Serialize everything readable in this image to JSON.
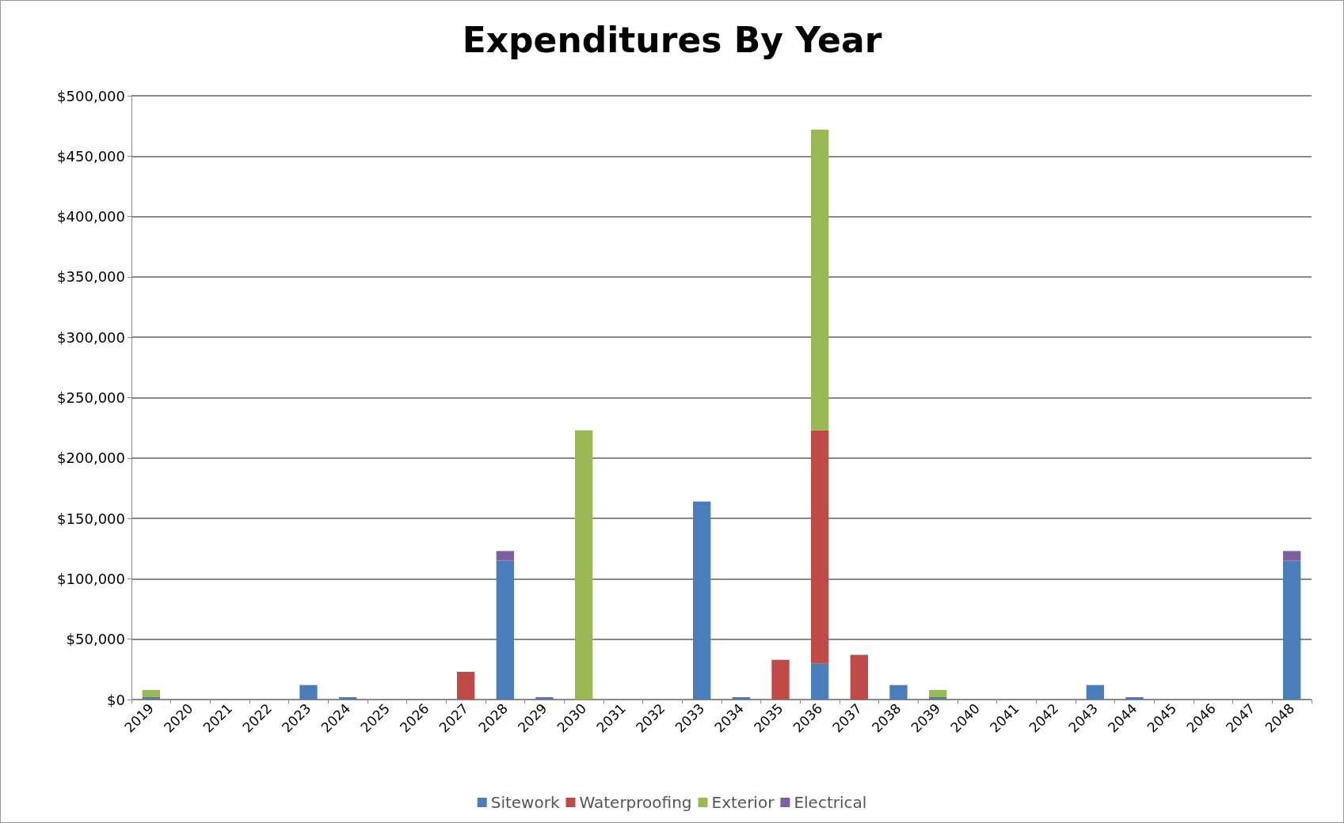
{
  "chart_data": {
    "type": "bar",
    "title": "Expenditures By Year",
    "stacked": true,
    "grid": "y",
    "legend": "bottom",
    "categories": [
      "2019",
      "2020",
      "2021",
      "2022",
      "2023",
      "2024",
      "2025",
      "2026",
      "2027",
      "2028",
      "2029",
      "2030",
      "2031",
      "2032",
      "2033",
      "2034",
      "2035",
      "2036",
      "2037",
      "2038",
      "2039",
      "2040",
      "2041",
      "2042",
      "2043",
      "2044",
      "2045",
      "2046",
      "2047",
      "2048"
    ],
    "series": [
      {
        "name": "Sitework",
        "color": "#4a7ebb",
        "values": [
          2000,
          0,
          0,
          0,
          12000,
          2000,
          0,
          0,
          0,
          115000,
          2000,
          0,
          0,
          0,
          164000,
          2000,
          0,
          30000,
          0,
          12000,
          2000,
          0,
          0,
          0,
          12000,
          2000,
          0,
          0,
          0,
          115000
        ]
      },
      {
        "name": "Waterproofing",
        "color": "#be4b48",
        "values": [
          0,
          0,
          0,
          0,
          0,
          0,
          0,
          0,
          23000,
          0,
          0,
          0,
          0,
          0,
          0,
          0,
          33000,
          193000,
          37000,
          0,
          0,
          0,
          0,
          0,
          0,
          0,
          0,
          0,
          0,
          0
        ]
      },
      {
        "name": "Exterior",
        "color": "#98b954",
        "values": [
          6000,
          0,
          0,
          0,
          0,
          0,
          0,
          0,
          0,
          0,
          0,
          223000,
          0,
          0,
          0,
          0,
          0,
          249000,
          0,
          0,
          6000,
          0,
          0,
          0,
          0,
          0,
          0,
          0,
          0,
          0
        ]
      },
      {
        "name": "Electrical",
        "color": "#7d60a0",
        "values": [
          0,
          0,
          0,
          0,
          0,
          0,
          0,
          0,
          0,
          8000,
          0,
          0,
          0,
          0,
          0,
          0,
          0,
          0,
          0,
          0,
          0,
          0,
          0,
          0,
          0,
          0,
          0,
          0,
          0,
          8000
        ]
      }
    ],
    "ylim": [
      0,
      500000
    ],
    "yticks": [
      {
        "value": 0,
        "label": "$0"
      },
      {
        "value": 50000,
        "label": "$50,000"
      },
      {
        "value": 100000,
        "label": "$100,000"
      },
      {
        "value": 150000,
        "label": "$150,000"
      },
      {
        "value": 200000,
        "label": "$200,000"
      },
      {
        "value": 250000,
        "label": "$250,000"
      },
      {
        "value": 300000,
        "label": "$300,000"
      },
      {
        "value": 350000,
        "label": "$350,000"
      },
      {
        "value": 400000,
        "label": "$400,000"
      },
      {
        "value": 450000,
        "label": "$450,000"
      },
      {
        "value": 500000,
        "label": "$500,000"
      }
    ]
  }
}
